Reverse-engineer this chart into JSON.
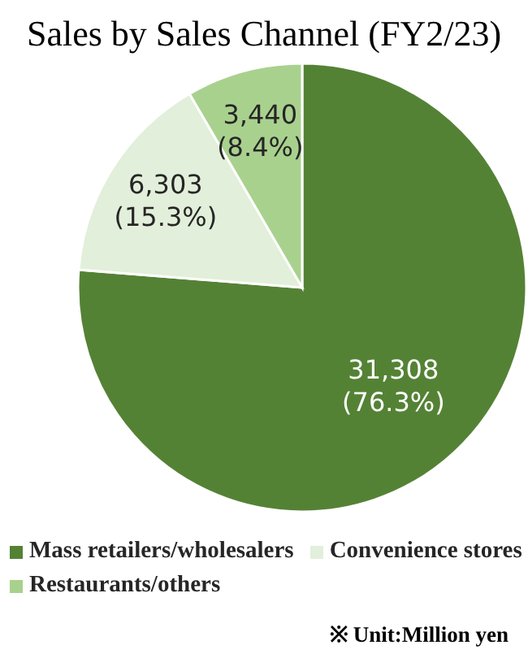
{
  "chart_data": {
    "type": "pie",
    "title": "Sales by Sales Channel (FY2/23)",
    "categories": [
      "Mass retailers/wholesalers",
      "Convenience stores",
      "Restaurants/others"
    ],
    "values": [
      31308,
      6303,
      3440
    ],
    "colors": [
      "#548235",
      "#e2efda",
      "#a9d18e"
    ],
    "value_labels": [
      "31,308 (76.3%)",
      "6,303 (15.3%)",
      "3,440 (8.4%)"
    ],
    "legend": "bottom",
    "annotations": [
      "※ Unit:Million yen"
    ]
  }
}
